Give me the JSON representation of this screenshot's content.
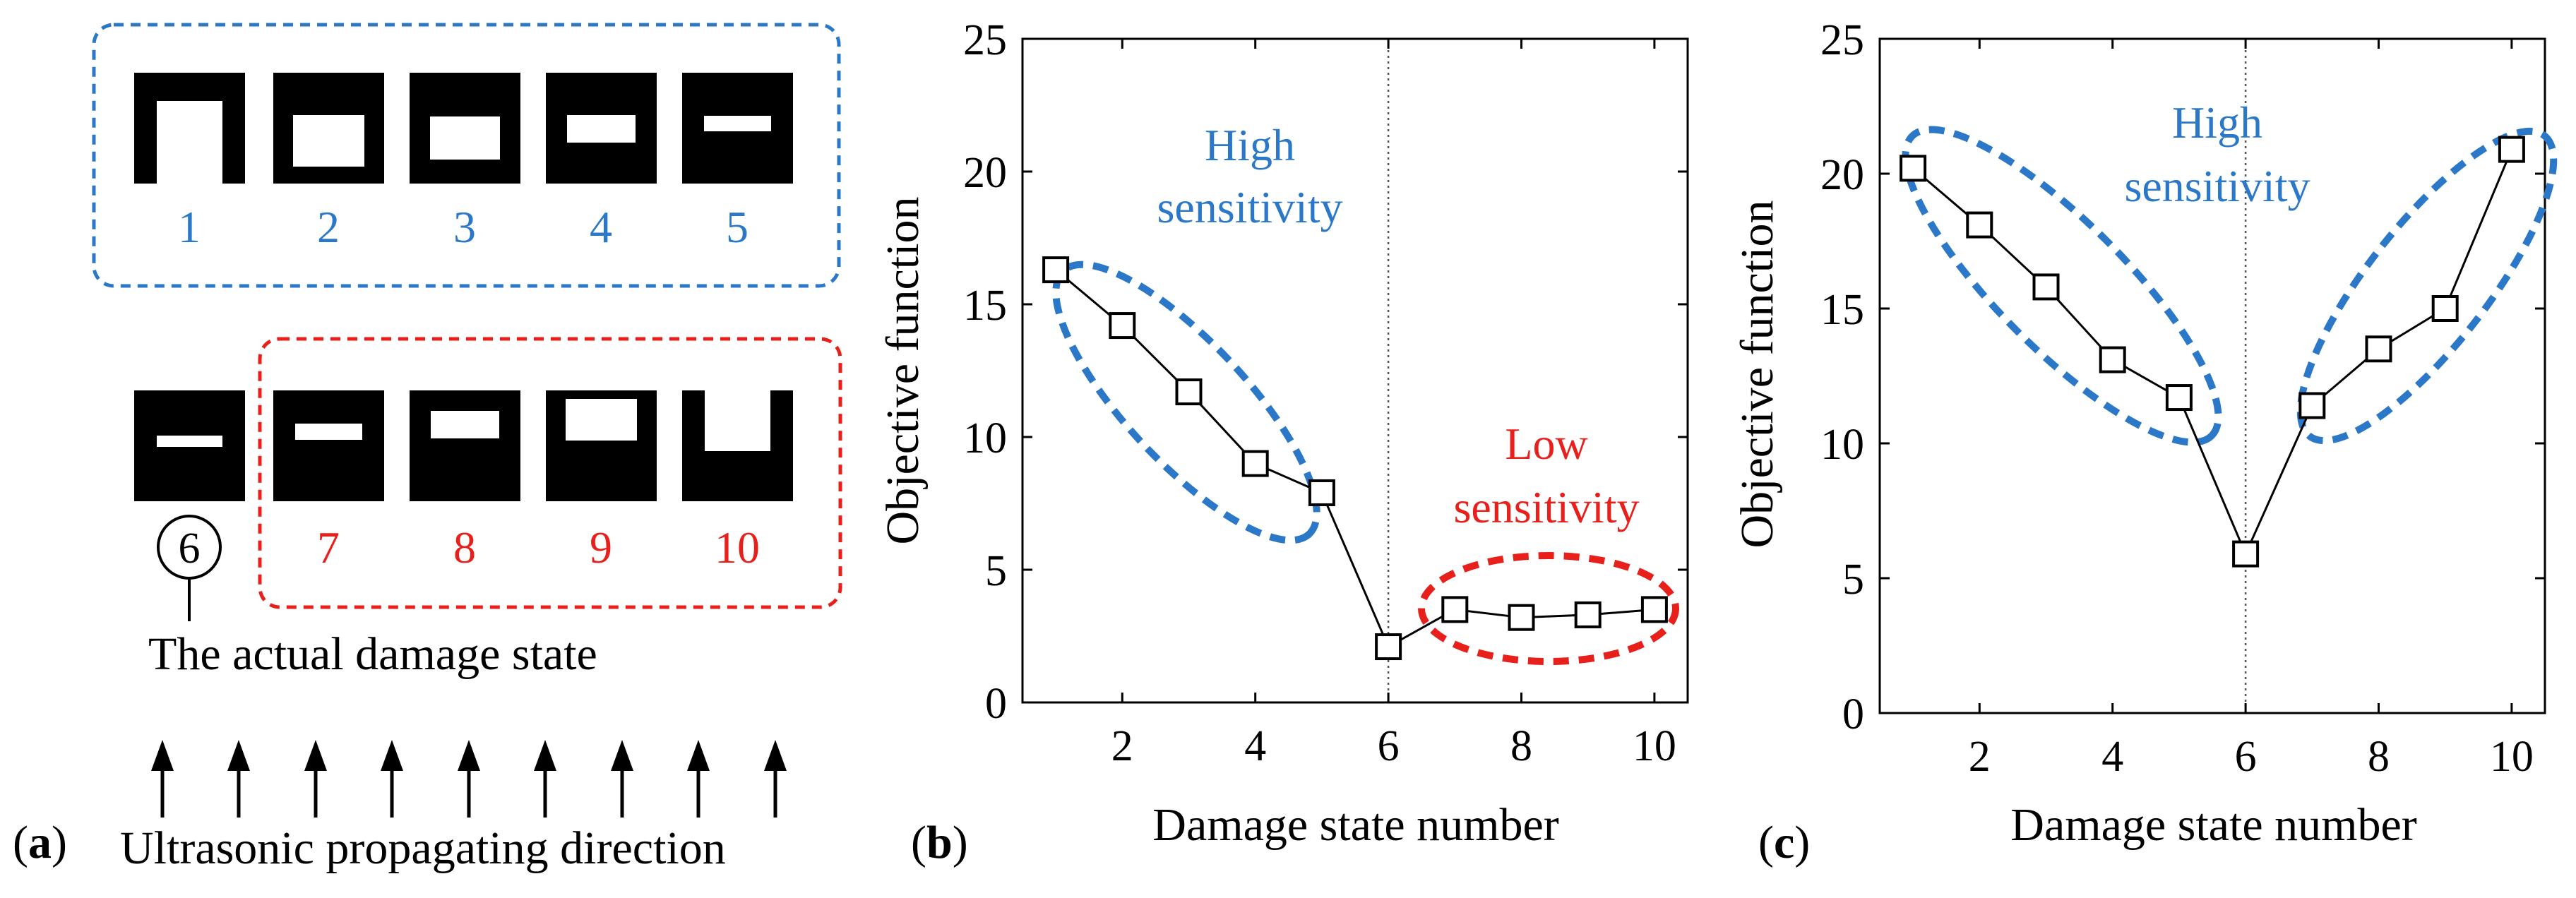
{
  "panel_a": {
    "label_open": "(",
    "label_letter": "a",
    "label_close": ")",
    "top_group": [
      "1",
      "2",
      "3",
      "4",
      "5"
    ],
    "bottom_group_actual": "6",
    "bottom_group": [
      "7",
      "8",
      "9",
      "10"
    ],
    "actual_state_caption": "The actual damage state",
    "direction_caption": "Ultrasonic propagating direction",
    "colors": {
      "blue": "#2c78c8",
      "red": "#e8201c",
      "black": "#000000"
    }
  },
  "chart_data": [
    {
      "panel": "b",
      "label_open": "(",
      "label_letter": "b",
      "label_close": ")",
      "type": "line",
      "xlabel": "Damage state number",
      "ylabel": "Objective function",
      "xlim": [
        0.5,
        10.5
      ],
      "ylim": [
        0,
        25
      ],
      "x_ticks": [
        2,
        4,
        6,
        8,
        10
      ],
      "y_ticks": [
        0,
        5,
        10,
        15,
        20,
        25
      ],
      "x": [
        1,
        2,
        3,
        4,
        5,
        6,
        7,
        8,
        9,
        10
      ],
      "values": [
        16.3,
        14.2,
        11.7,
        9.0,
        7.9,
        2.1,
        3.5,
        3.2,
        3.3,
        3.5
      ],
      "marker": "square",
      "vline_x": 6,
      "annotations": [
        {
          "lines": [
            "High",
            "sensitivity"
          ],
          "color": "#2c78c8"
        },
        {
          "lines": [
            "Low",
            "sensitivity"
          ],
          "color": "#e8201c"
        }
      ]
    },
    {
      "panel": "c",
      "label_open": "(",
      "label_letter": "c",
      "label_close": ")",
      "type": "line",
      "xlabel": "Damage state number",
      "ylabel": "Objective function",
      "xlim": [
        0.5,
        10.5
      ],
      "ylim": [
        0,
        25
      ],
      "x_ticks": [
        2,
        4,
        6,
        8,
        10
      ],
      "y_ticks": [
        0,
        5,
        10,
        15,
        20,
        25
      ],
      "x": [
        1,
        2,
        3,
        4,
        5,
        6,
        7,
        8,
        9,
        10
      ],
      "values": [
        20.2,
        18.1,
        15.8,
        13.1,
        11.7,
        5.9,
        11.4,
        13.5,
        15.0,
        20.9
      ],
      "marker": "square",
      "vline_x": 6,
      "annotations": [
        {
          "lines": [
            "High",
            "sensitivity"
          ],
          "color": "#2c78c8"
        }
      ]
    }
  ]
}
